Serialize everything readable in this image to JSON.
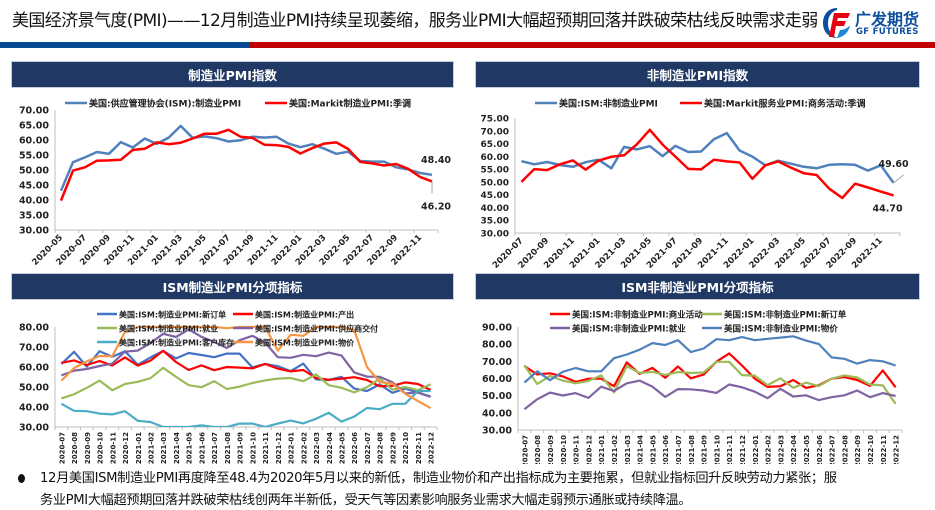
{
  "header": {
    "title": "美国经济景气度(PMI)——12月制造业PMI持续呈现萎缩，服务业PMI大幅超预期回落并跌破荣枯线反映需求走弱",
    "logo_cn": "广发期货",
    "logo_en": "GF FUTURES",
    "colors": {
      "primary_blue": "#034a91",
      "primary_red": "#c00000",
      "panel_header": "#203864"
    }
  },
  "panels": [
    {
      "title": "制造业PMI指数"
    },
    {
      "title": "非制造业PMI指数"
    },
    {
      "title": "ISM制造业PMI分项指标"
    },
    {
      "title": "ISM非制造业PMI分项指标"
    }
  ],
  "chart_data": [
    {
      "type": "line",
      "title": "制造业PMI指数",
      "xlabel": "",
      "ylabel": "",
      "ylim": [
        30,
        70
      ],
      "yticks": [
        "30.00",
        "35.00",
        "40.00",
        "45.00",
        "50.00",
        "55.00",
        "60.00",
        "65.00",
        "70.00"
      ],
      "x": [
        "2020-05",
        "2020-06",
        "2020-07",
        "2020-08",
        "2020-09",
        "2020-10",
        "2020-11",
        "2020-12",
        "2021-01",
        "2021-02",
        "2021-03",
        "2021-04",
        "2021-05",
        "2021-06",
        "2021-07",
        "2021-08",
        "2021-09",
        "2021-10",
        "2021-11",
        "2021-12",
        "2022-01",
        "2022-02",
        "2022-03",
        "2022-04",
        "2022-05",
        "2022-06",
        "2022-07",
        "2022-08",
        "2022-09",
        "2022-10",
        "2022-11",
        "2022-12"
      ],
      "xticklabels": [
        "2020-05",
        "2020-07",
        "2020-09",
        "2020-11",
        "2021-01",
        "2021-03",
        "2021-05",
        "2021-07",
        "2021-09",
        "2021-11",
        "2022-01",
        "2022-03",
        "2022-05",
        "2022-07",
        "2022-09",
        "2022-11"
      ],
      "legend_position": "top",
      "grid": false,
      "series": [
        {
          "name": "美国:供应管理协会(ISM):制造业PMI",
          "color": "#4f81bd",
          "values": [
            43.1,
            52.6,
            54.2,
            56.0,
            55.4,
            59.3,
            57.5,
            60.5,
            58.7,
            60.8,
            64.7,
            60.7,
            61.2,
            60.6,
            59.5,
            59.9,
            61.1,
            60.8,
            61.1,
            58.8,
            57.6,
            58.6,
            57.1,
            55.4,
            56.1,
            53.0,
            52.8,
            52.8,
            50.9,
            50.2,
            49.0,
            48.4
          ]
        },
        {
          "name": "美国:Markit制造业PMI:季调",
          "color": "#ff0000",
          "values": [
            39.8,
            49.8,
            50.9,
            53.1,
            53.2,
            53.4,
            56.7,
            57.1,
            59.2,
            58.6,
            59.1,
            60.5,
            62.1,
            62.1,
            63.4,
            61.1,
            60.7,
            58.4,
            58.3,
            57.7,
            55.5,
            57.3,
            58.8,
            59.2,
            57.0,
            52.7,
            52.2,
            51.5,
            52.0,
            50.4,
            47.7,
            46.2
          ]
        }
      ],
      "annotations": [
        {
          "series": 0,
          "label": "48.40"
        },
        {
          "series": 1,
          "label": "46.20"
        }
      ]
    },
    {
      "type": "line",
      "title": "非制造业PMI指数",
      "xlabel": "",
      "ylabel": "",
      "ylim": [
        30,
        75
      ],
      "yticks": [
        "30.00",
        "35.00",
        "40.00",
        "45.00",
        "50.00",
        "55.00",
        "60.00",
        "65.00",
        "70.00",
        "75.00"
      ],
      "x": [
        "2020-07",
        "2020-08",
        "2020-09",
        "2020-10",
        "2020-11",
        "2020-12",
        "2021-01",
        "2021-02",
        "2021-03",
        "2021-04",
        "2021-05",
        "2021-06",
        "2021-07",
        "2021-08",
        "2021-09",
        "2021-10",
        "2021-11",
        "2021-12",
        "2022-01",
        "2022-02",
        "2022-03",
        "2022-04",
        "2022-05",
        "2022-06",
        "2022-07",
        "2022-08",
        "2022-09",
        "2022-10",
        "2022-11",
        "2022-12"
      ],
      "xticklabels": [
        "2020-07",
        "2020-09",
        "2020-11",
        "2021-01",
        "2021-03",
        "2021-05",
        "2021-07",
        "2021-09",
        "2021-11",
        "2022-01",
        "2022-03",
        "2022-05",
        "2022-07",
        "2022-09",
        "2022-11"
      ],
      "legend_position": "top",
      "grid": false,
      "series": [
        {
          "name": "美国:ISM:非制造业PMI",
          "color": "#4f81bd",
          "values": [
            58.1,
            56.9,
            57.8,
            56.6,
            55.9,
            57.7,
            58.7,
            55.3,
            63.7,
            62.7,
            64.0,
            60.1,
            64.1,
            61.7,
            61.9,
            66.7,
            69.1,
            62.3,
            59.9,
            56.5,
            58.3,
            57.1,
            55.9,
            55.3,
            56.7,
            56.9,
            56.7,
            54.4,
            56.5,
            49.6
          ]
        },
        {
          "name": "美国:Markit服务业PMI:商务活动:季调",
          "color": "#ff0000",
          "values": [
            50.0,
            55.0,
            54.6,
            56.9,
            58.4,
            54.8,
            58.3,
            59.8,
            60.4,
            64.7,
            70.4,
            64.6,
            59.9,
            55.1,
            54.9,
            58.7,
            58.0,
            57.6,
            51.2,
            56.5,
            58.0,
            55.6,
            53.4,
            52.7,
            47.3,
            43.7,
            49.3,
            47.8,
            46.2,
            44.7
          ]
        }
      ],
      "annotations": [
        {
          "series": 0,
          "label": "49.60"
        },
        {
          "series": 1,
          "label": "44.70"
        }
      ]
    },
    {
      "type": "line",
      "title": "ISM制造业PMI分项指标",
      "xlabel": "",
      "ylabel": "",
      "ylim": [
        30,
        80
      ],
      "yticks": [
        "30.00",
        "40.00",
        "50.00",
        "60.00",
        "70.00",
        "80.00"
      ],
      "x": [
        "2020-07",
        "2020-08",
        "2020-09",
        "2020-10",
        "2020-11",
        "2020-12",
        "2021-01",
        "2021-02",
        "2021-03",
        "2021-04",
        "2021-05",
        "2021-06",
        "2021-07",
        "2021-08",
        "2021-09",
        "2021-10",
        "2021-11",
        "2021-12",
        "2022-01",
        "2022-02",
        "2022-03",
        "2022-04",
        "2022-05",
        "2022-06",
        "2022-07",
        "2022-08",
        "2022-09",
        "2022-10",
        "2022-11",
        "2022-12"
      ],
      "legend_position": "top",
      "grid": false,
      "series": [
        {
          "name": "美国:ISM:制造业PMI:新订单",
          "color": "#4472c4",
          "values": [
            61.5,
            67.6,
            60.2,
            67.9,
            65.1,
            67.9,
            61.1,
            64.8,
            68.0,
            64.3,
            67.0,
            66.0,
            64.9,
            66.7,
            66.7,
            59.8,
            61.5,
            60.4,
            57.9,
            61.7,
            53.8,
            53.5,
            55.1,
            49.2,
            48.0,
            51.3,
            47.1,
            49.2,
            47.2,
            45.2
          ]
        },
        {
          "name": "美国:ISM:制造业PMI:产出",
          "color": "#ff0000",
          "values": [
            62.1,
            63.3,
            61.0,
            63.0,
            60.8,
            64.8,
            60.7,
            63.2,
            68.1,
            62.5,
            58.5,
            60.8,
            58.4,
            60.0,
            59.7,
            59.3,
            61.5,
            59.2,
            57.8,
            58.5,
            54.5,
            53.6,
            54.2,
            54.9,
            53.5,
            50.4,
            50.6,
            52.3,
            51.5,
            48.5
          ]
        },
        {
          "name": "美国:ISM:制造业PMI:就业",
          "color": "#9bbb59",
          "values": [
            44.3,
            46.4,
            49.6,
            53.2,
            48.4,
            51.5,
            52.6,
            54.4,
            59.6,
            55.1,
            50.9,
            49.9,
            52.9,
            49.0,
            50.2,
            52.0,
            53.3,
            54.2,
            54.5,
            52.9,
            56.3,
            50.9,
            49.6,
            47.3,
            49.9,
            54.2,
            48.7,
            50.0,
            48.4,
            51.4
          ]
        },
        {
          "name": "美国:ISM:制造业PMI:供应商交付",
          "color": "#8064a2",
          "values": [
            55.8,
            58.2,
            59.0,
            60.5,
            61.7,
            67.7,
            68.2,
            72.0,
            76.6,
            75.0,
            78.8,
            75.1,
            72.5,
            69.5,
            73.4,
            75.6,
            72.2,
            64.9,
            64.6,
            66.1,
            65.4,
            67.2,
            65.7,
            57.3,
            55.2,
            55.1,
            52.4,
            46.8,
            47.2,
            45.1
          ]
        },
        {
          "name": "美国:ISM:制造业PMI:客户库存",
          "color": "#4bacc6",
          "values": [
            41.6,
            38.1,
            37.9,
            36.7,
            36.3,
            37.9,
            33.1,
            32.5,
            29.9,
            28.4,
            28.0,
            30.8,
            25.0,
            30.0,
            31.7,
            31.7,
            25.1,
            31.7,
            33.2,
            31.8,
            34.1,
            37.1,
            32.7,
            35.2,
            39.5,
            38.9,
            41.6,
            41.6,
            48.0,
            48.0
          ]
        },
        {
          "name": "美国:ISM:制造业PMI:物价",
          "color": "#f79646",
          "values": [
            53.2,
            59.5,
            62.8,
            65.5,
            65.4,
            77.6,
            82.1,
            86.0,
            85.6,
            89.6,
            88.0,
            92.1,
            85.7,
            79.4,
            81.2,
            85.7,
            82.4,
            68.2,
            76.1,
            75.6,
            87.1,
            84.6,
            82.2,
            78.5,
            60.0,
            52.5,
            51.7,
            46.6,
            43.0,
            39.4
          ]
        }
      ]
    },
    {
      "type": "line",
      "title": "ISM非制造业PMI分项指标",
      "xlabel": "",
      "ylabel": "",
      "ylim": [
        30,
        90
      ],
      "yticks": [
        "30.00",
        "40.00",
        "50.00",
        "60.00",
        "70.00",
        "80.00",
        "90.00"
      ],
      "x": [
        "2020-07",
        "2020-08",
        "2020-09",
        "2020-10",
        "2020-11",
        "2020-12",
        "2021-01",
        "2021-02",
        "2021-03",
        "2021-04",
        "2021-05",
        "2021-06",
        "2021-07",
        "2021-08",
        "2021-09",
        "2021-10",
        "2021-11",
        "2021-12",
        "2022-01",
        "2022-02",
        "2022-03",
        "2022-04",
        "2022-05",
        "2022-06",
        "2022-07",
        "2022-08",
        "2022-09",
        "2022-10",
        "2022-11",
        "2022-12"
      ],
      "legend_position": "top",
      "grid": false,
      "series": [
        {
          "name": "美国:ISM:非制造业PMI:商业活动",
          "color": "#ff0000",
          "values": [
            67.2,
            62.4,
            63.0,
            61.2,
            58.0,
            59.9,
            59.9,
            55.5,
            69.4,
            62.7,
            66.2,
            60.4,
            67.0,
            60.1,
            62.3,
            69.8,
            74.6,
            67.6,
            59.9,
            55.1,
            55.5,
            59.1,
            54.5,
            56.1,
            59.9,
            60.9,
            59.1,
            55.7,
            64.7,
            54.9
          ]
        },
        {
          "name": "美国:ISM:非制造业PMI:新订单",
          "color": "#9bbb59",
          "values": [
            67.7,
            56.8,
            61.5,
            58.8,
            57.2,
            58.6,
            61.8,
            51.9,
            67.2,
            63.2,
            63.9,
            62.1,
            63.7,
            63.2,
            63.5,
            69.7,
            69.7,
            62.0,
            61.7,
            56.1,
            60.1,
            54.6,
            57.6,
            55.6,
            59.9,
            61.8,
            60.6,
            56.5,
            56.0,
            45.2
          ]
        },
        {
          "name": "美国:ISM:非制造业PMI:就业",
          "color": "#8064a2",
          "values": [
            42.1,
            47.9,
            51.8,
            50.1,
            51.5,
            48.7,
            55.2,
            52.7,
            57.2,
            58.8,
            55.3,
            49.3,
            53.8,
            53.7,
            53.0,
            51.6,
            56.5,
            54.9,
            52.3,
            48.5,
            54.0,
            49.5,
            50.2,
            47.4,
            49.1,
            50.2,
            53.0,
            49.1,
            51.5,
            49.8
          ]
        },
        {
          "name": "美国:ISM:非制造业PMI:物价",
          "color": "#4f81bd",
          "values": [
            57.6,
            64.2,
            59.0,
            63.9,
            66.1,
            64.2,
            64.2,
            71.8,
            74.0,
            76.8,
            80.6,
            79.5,
            82.3,
            75.4,
            77.5,
            82.9,
            82.3,
            84.1,
            82.3,
            83.1,
            83.8,
            84.6,
            82.1,
            80.1,
            72.3,
            71.5,
            68.7,
            70.7,
            70.0,
            67.6
          ]
        }
      ]
    }
  ],
  "footer": {
    "bullet_line1": "12月美国ISM制造业PMI再度降至48.4为2020年5月以来的新低，制造业物价和产出指标成为主要拖累，但就业指标回升反映劳动力紧张；服",
    "bullet_line2": "务业PMI大幅超预期回落并跌破荣枯线创两年半新低，受天气等因素影响服务业需求大幅走弱预示通胀或持续降温。"
  }
}
